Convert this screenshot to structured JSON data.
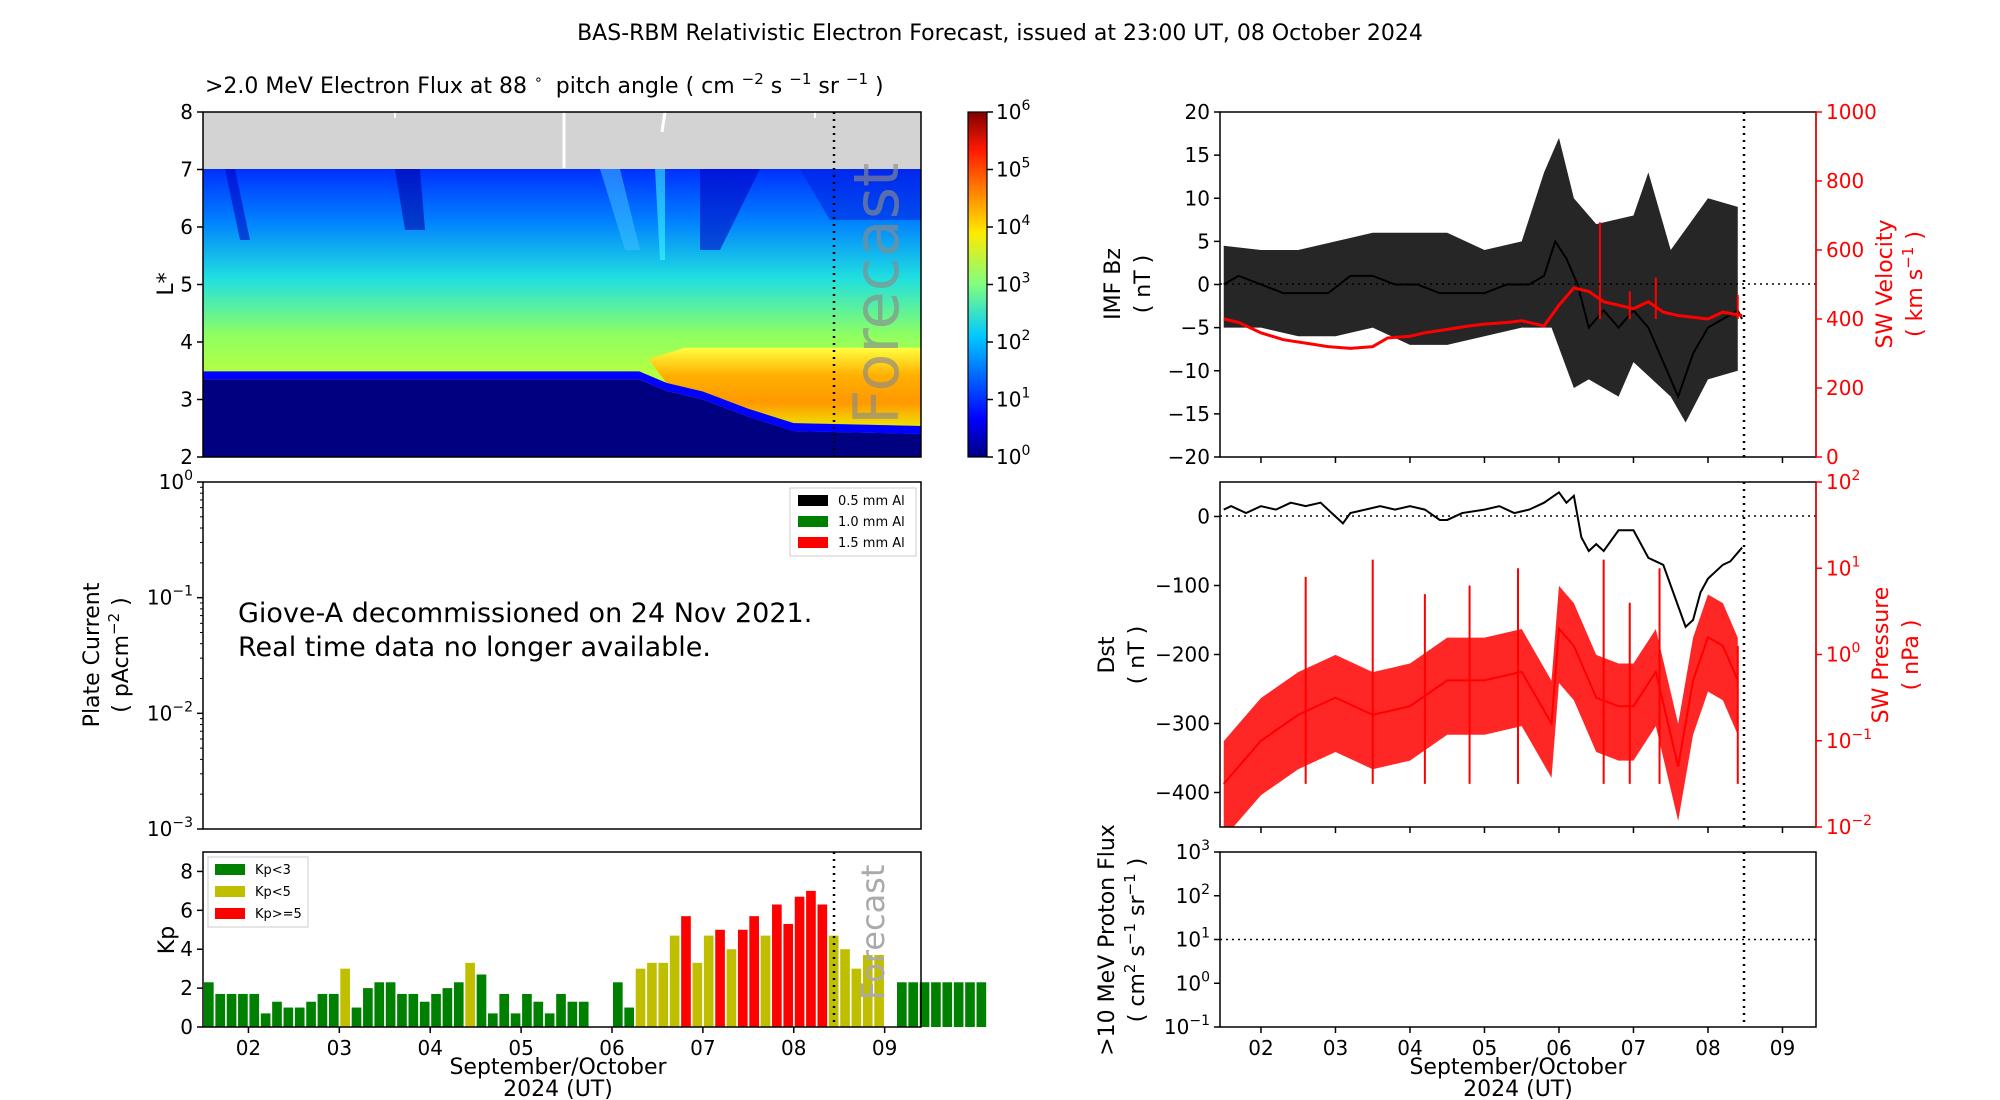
{
  "title": "BAS-RBM Relativistic Electron Forecast, issued at 23:00 UT, 08 October 2024",
  "colors": {
    "red": "#ff0000",
    "green": "#008000",
    "olive": "#bfbf00",
    "grey": "#d3d3d3",
    "black": "#000000",
    "darkblue": "#000080"
  },
  "chart_data": [
    {
      "id": "electron_flux",
      "type": "heatmap",
      "title_main": ">2.0 MeV Electron Flux at 88",
      "title_deg": "∘",
      "title_units": "pitch angle ( cm",
      "title_sup1": "−2",
      "title_s": " s",
      "title_sup2": "−1",
      "title_sr": " sr",
      "title_sup3": "−1",
      "title_close": " )",
      "ylabel": "L*",
      "ylim": [
        2,
        8
      ],
      "yticks": [
        "2",
        "3",
        "4",
        "5",
        "6",
        "7",
        "8"
      ],
      "xlim": [
        1.5,
        9.4
      ],
      "forecast_start": 8.458,
      "forecast_label": "Forecast",
      "no_data_above_L": 7.0,
      "colorbar": {
        "scale": "log",
        "min_exp": 0,
        "max_exp": 6,
        "tick_base": "10",
        "tick_exps": [
          "0",
          "1",
          "2",
          "3",
          "4",
          "5",
          "6"
        ]
      },
      "inner_belt_edge": [
        [
          1.5,
          3.35
        ],
        [
          6.3,
          3.35
        ],
        [
          6.6,
          3.15
        ],
        [
          7.0,
          3.0
        ],
        [
          7.5,
          2.7
        ],
        [
          8.0,
          2.45
        ],
        [
          9.4,
          2.4
        ]
      ],
      "peak_region": {
        "start_day": 6.4,
        "l_low": 3.0,
        "l_high": 3.9
      }
    },
    {
      "id": "plate_current",
      "type": "line",
      "ylabel1": "Plate Current",
      "ylabel2": "( pAcm",
      "ylabel2_sup": "−2",
      "ylabel2_close": " )",
      "ylim_exp": [
        -3,
        0
      ],
      "tick_base": "10",
      "tick_exps": [
        "−3",
        "−2",
        "−1",
        "0"
      ],
      "legend": [
        "0.5 mm Al",
        "1.0 mm Al",
        "1.5 mm Al"
      ],
      "message_line1": "Giove-A decommissioned on 24 Nov 2021.",
      "message_line2": "Real time data no longer available."
    },
    {
      "id": "kp",
      "type": "bar",
      "ylabel": "Kp",
      "ylim": [
        0,
        9
      ],
      "yticks": [
        "0",
        "2",
        "4",
        "6",
        "8"
      ],
      "legend": [
        "Kp<3",
        "Kp<5",
        "Kp>=5"
      ],
      "forecast_label": "Forecast",
      "forecast_start": 8.458,
      "bar_start_day": 1.5,
      "bar_width_days": 0.125,
      "values": [
        2.3,
        1.7,
        1.7,
        1.7,
        1.7,
        0.7,
        1.3,
        1.0,
        1.0,
        1.3,
        1.7,
        1.7,
        3.0,
        1.0,
        2.0,
        2.3,
        2.3,
        1.7,
        1.7,
        1.3,
        1.7,
        2.0,
        2.3,
        3.3,
        2.7,
        0.7,
        1.7,
        0.7,
        1.7,
        1.3,
        0.7,
        1.7,
        1.3,
        1.3,
        0,
        0,
        2.3,
        1.0,
        3.0,
        3.3,
        3.3,
        4.7,
        5.7,
        3.3,
        4.7,
        5.0,
        4.0,
        5.0,
        5.7,
        4.7,
        6.3,
        5.3,
        6.7,
        7.0,
        6.3,
        4.7,
        4.0,
        3.0,
        3.7,
        3.7,
        0,
        2.3,
        2.3,
        2.3,
        2.3,
        2.3,
        2.3,
        2.3,
        2.3
      ],
      "xticks": [
        "02",
        "03",
        "04",
        "05",
        "06",
        "07",
        "08",
        "09"
      ],
      "xlabel1": "September/October",
      "xlabel2": "2024 (UT)"
    },
    {
      "id": "imf_bz_sw_velocity",
      "type": "line",
      "ylabel_left1": "IMF Bz",
      "ylabel_left2": "( nT )",
      "ylabel_right1": "SW Velocity",
      "ylabel_right2": "( km s",
      "ylabel_right_sup": "−1",
      "ylabel_right_close": " )",
      "ylim_left": [
        -20,
        20
      ],
      "yticks_left": [
        "−20",
        "−15",
        "−10",
        "−5",
        "0",
        "5",
        "10",
        "15",
        "20"
      ],
      "ylim_right": [
        0,
        1000
      ],
      "yticks_right": [
        "0",
        "200",
        "400",
        "600",
        "800",
        "1000"
      ],
      "xlim": [
        1.45,
        9.45
      ],
      "now": 8.458,
      "series": [
        {
          "name": "IMF Bz",
          "axis": "left",
          "color": "#000000",
          "points": [
            [
              1.5,
              0
            ],
            [
              1.7,
              1
            ],
            [
              2.0,
              0
            ],
            [
              2.3,
              -1
            ],
            [
              2.6,
              -1
            ],
            [
              2.9,
              -1
            ],
            [
              3.2,
              1
            ],
            [
              3.5,
              1
            ],
            [
              3.8,
              0
            ],
            [
              4.1,
              0
            ],
            [
              4.4,
              -1
            ],
            [
              4.7,
              -1
            ],
            [
              5.0,
              -1
            ],
            [
              5.3,
              0
            ],
            [
              5.6,
              0
            ],
            [
              5.8,
              1
            ],
            [
              5.95,
              5
            ],
            [
              6.1,
              3
            ],
            [
              6.25,
              0
            ],
            [
              6.4,
              -5
            ],
            [
              6.6,
              -3
            ],
            [
              6.8,
              -5
            ],
            [
              7.0,
              -3
            ],
            [
              7.2,
              -5
            ],
            [
              7.4,
              -9
            ],
            [
              7.6,
              -13
            ],
            [
              7.8,
              -8
            ],
            [
              8.0,
              -5
            ],
            [
              8.2,
              -4
            ],
            [
              8.4,
              -3
            ],
            [
              8.458,
              -4
            ]
          ],
          "envelope": [
            [
              1.5,
              4.5
            ],
            [
              2.0,
              4
            ],
            [
              2.5,
              4
            ],
            [
              3.0,
              5
            ],
            [
              3.5,
              6
            ],
            [
              4.0,
              6
            ],
            [
              4.5,
              6
            ],
            [
              5.0,
              4
            ],
            [
              5.5,
              5
            ],
            [
              5.8,
              13
            ],
            [
              6.0,
              17
            ],
            [
              6.2,
              10
            ],
            [
              6.5,
              7
            ],
            [
              7.0,
              8
            ],
            [
              7.2,
              13
            ],
            [
              7.5,
              4
            ],
            [
              8.0,
              10
            ],
            [
              8.4,
              9
            ]
          ],
          "envelope_low": [
            [
              1.5,
              -5
            ],
            [
              2.0,
              -5
            ],
            [
              2.5,
              -6
            ],
            [
              3.0,
              -6
            ],
            [
              3.5,
              -5
            ],
            [
              4.0,
              -7
            ],
            [
              4.5,
              -7
            ],
            [
              5.0,
              -6
            ],
            [
              5.5,
              -5
            ],
            [
              5.9,
              -5
            ],
            [
              6.2,
              -12
            ],
            [
              6.4,
              -11
            ],
            [
              6.8,
              -13
            ],
            [
              7.0,
              -9
            ],
            [
              7.5,
              -13
            ],
            [
              7.7,
              -16
            ],
            [
              8.0,
              -11
            ],
            [
              8.4,
              -10
            ]
          ]
        },
        {
          "name": "SW Velocity",
          "axis": "right",
          "color": "#ff0000",
          "points": [
            [
              1.5,
              400
            ],
            [
              1.7,
              390
            ],
            [
              2.0,
              360
            ],
            [
              2.3,
              340
            ],
            [
              2.6,
              330
            ],
            [
              2.9,
              320
            ],
            [
              3.2,
              315
            ],
            [
              3.5,
              320
            ],
            [
              3.7,
              345
            ],
            [
              4.0,
              350
            ],
            [
              4.2,
              360
            ],
            [
              4.5,
              370
            ],
            [
              4.8,
              380
            ],
            [
              5.0,
              385
            ],
            [
              5.3,
              390
            ],
            [
              5.5,
              395
            ],
            [
              5.8,
              380
            ],
            [
              6.0,
              440
            ],
            [
              6.2,
              490
            ],
            [
              6.4,
              480
            ],
            [
              6.6,
              450
            ],
            [
              6.8,
              440
            ],
            [
              7.0,
              430
            ],
            [
              7.2,
              450
            ],
            [
              7.4,
              420
            ],
            [
              7.6,
              410
            ],
            [
              7.8,
              405
            ],
            [
              8.0,
              400
            ],
            [
              8.2,
              420
            ],
            [
              8.458,
              410
            ]
          ],
          "spikes": [
            [
              6.55,
              680
            ],
            [
              7.3,
              520
            ],
            [
              6.95,
              480
            ],
            [
              8.4,
              470
            ]
          ]
        }
      ]
    },
    {
      "id": "dst_sw_pressure",
      "type": "line",
      "ylabel_left1": "Dst",
      "ylabel_left2": "( nT )",
      "ylabel_right1": "SW Pressure",
      "ylabel_right2": "( nPa )",
      "ylim_left": [
        -450,
        50
      ],
      "yticks_left": [
        "−400",
        "−300",
        "−200",
        "−100",
        "0"
      ],
      "ylim_right_exp": [
        -2,
        2
      ],
      "tick_base": "10",
      "yticks_right_exps": [
        "−2",
        "−1",
        "0",
        "1",
        "2"
      ],
      "xlim": [
        1.45,
        9.45
      ],
      "now": 8.458,
      "series": [
        {
          "name": "Dst",
          "axis": "left",
          "color": "#000000",
          "points": [
            [
              1.5,
              10
            ],
            [
              1.6,
              15
            ],
            [
              1.8,
              5
            ],
            [
              2.0,
              15
            ],
            [
              2.2,
              10
            ],
            [
              2.4,
              20
            ],
            [
              2.6,
              15
            ],
            [
              2.8,
              20
            ],
            [
              3.0,
              0
            ],
            [
              3.1,
              -10
            ],
            [
              3.2,
              5
            ],
            [
              3.4,
              10
            ],
            [
              3.6,
              15
            ],
            [
              3.8,
              10
            ],
            [
              4.0,
              15
            ],
            [
              4.2,
              10
            ],
            [
              4.4,
              -5
            ],
            [
              4.5,
              -5
            ],
            [
              4.7,
              5
            ],
            [
              5.0,
              10
            ],
            [
              5.2,
              15
            ],
            [
              5.4,
              5
            ],
            [
              5.6,
              10
            ],
            [
              5.8,
              20
            ],
            [
              6.0,
              35
            ],
            [
              6.1,
              20
            ],
            [
              6.2,
              30
            ],
            [
              6.3,
              -30
            ],
            [
              6.4,
              -50
            ],
            [
              6.5,
              -40
            ],
            [
              6.6,
              -50
            ],
            [
              6.8,
              -20
            ],
            [
              7.0,
              -20
            ],
            [
              7.2,
              -60
            ],
            [
              7.4,
              -70
            ],
            [
              7.5,
              -100
            ],
            [
              7.7,
              -160
            ],
            [
              7.8,
              -150
            ],
            [
              7.9,
              -110
            ],
            [
              8.0,
              -90
            ],
            [
              8.1,
              -80
            ],
            [
              8.2,
              -70
            ],
            [
              8.3,
              -65
            ],
            [
              8.458,
              -45
            ]
          ]
        },
        {
          "name": "SW Pressure",
          "axis": "right",
          "color": "#ff0000",
          "baseline_exp": [
            [
              1.5,
              -1.5
            ],
            [
              2.0,
              -1.0
            ],
            [
              2.5,
              -0.7
            ],
            [
              3.0,
              -0.5
            ],
            [
              3.5,
              -0.7
            ],
            [
              4.0,
              -0.6
            ],
            [
              4.5,
              -0.3
            ],
            [
              5.0,
              -0.3
            ],
            [
              5.5,
              -0.2
            ],
            [
              5.9,
              -0.8
            ],
            [
              6.0,
              0.3
            ],
            [
              6.2,
              0.1
            ],
            [
              6.5,
              -0.5
            ],
            [
              6.8,
              -0.6
            ],
            [
              7.0,
              -0.6
            ],
            [
              7.3,
              -0.2
            ],
            [
              7.6,
              -1.3
            ],
            [
              7.8,
              -0.3
            ],
            [
              8.0,
              0.2
            ],
            [
              8.2,
              0.1
            ],
            [
              8.4,
              -0.3
            ]
          ],
          "spread_exp": 0.9,
          "spikes_exp": [
            [
              2.6,
              0.9
            ],
            [
              3.5,
              1.1
            ],
            [
              4.2,
              0.7
            ],
            [
              4.8,
              0.8
            ],
            [
              5.45,
              1.0
            ],
            [
              6.6,
              1.1
            ],
            [
              6.95,
              0.6
            ],
            [
              7.35,
              1.0
            ],
            [
              8.4,
              0.1
            ]
          ]
        }
      ]
    },
    {
      "id": "proton_flux",
      "type": "line",
      "ylabel1": ">10 MeV Proton Flux",
      "ylabel2": "( cm",
      "ylabel2_sup": "2",
      "ylabel2_mid": " s",
      "ylabel2_sup2": "−1",
      "ylabel2_sr": " sr",
      "ylabel2_sup3": "−1",
      "ylabel2_close": " )",
      "ylim_exp": [
        -1,
        3
      ],
      "tick_base": "10",
      "tick_exps": [
        "−1",
        "0",
        "1",
        "2",
        "3"
      ],
      "threshold_exp": 1,
      "xticks": [
        "02",
        "03",
        "04",
        "05",
        "06",
        "07",
        "08",
        "09"
      ],
      "xlabel1": "September/October",
      "xlabel2": "2024 (UT)"
    }
  ]
}
